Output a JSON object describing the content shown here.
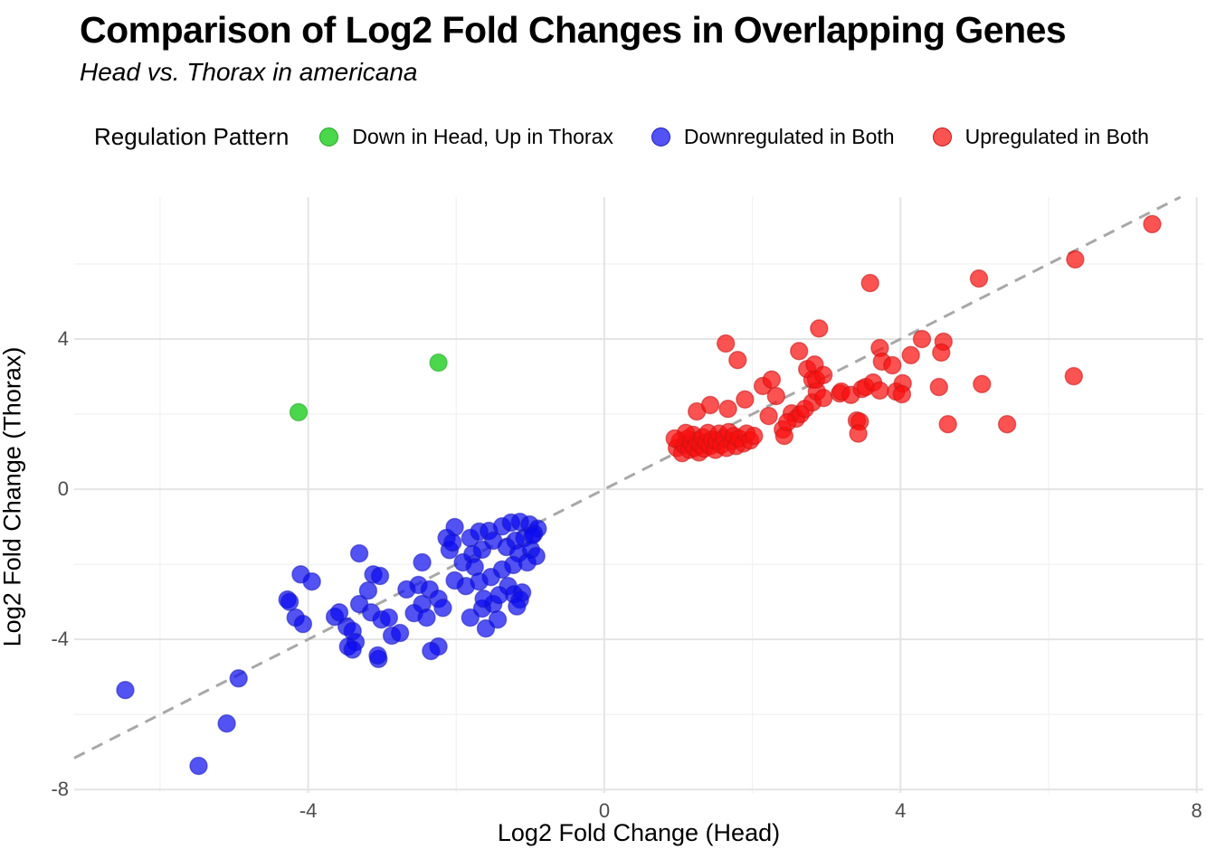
{
  "title": "Comparison of Log2 Fold Changes in Overlapping Genes",
  "subtitle": "Head vs. Thorax in americana",
  "legend": {
    "title": "Regulation Pattern",
    "items": [
      {
        "label": "Down in Head, Up in Thorax",
        "fill": "rgba(30,205,30,0.8)",
        "stroke": "#28a428"
      },
      {
        "label": "Downregulated in Both",
        "fill": "rgba(10,10,240,0.7)",
        "stroke": "#1d1db8"
      },
      {
        "label": "Upregulated in Both",
        "fill": "rgba(250,15,15,0.72)",
        "stroke": "#c21616"
      }
    ]
  },
  "colors": {
    "grid_major": "#e4e4e4",
    "grid_minor": "#f1f1f1",
    "identity_line": "#a8a8a8",
    "tick_text": "#4d4d4d"
  },
  "chart_data": {
    "type": "scatter",
    "title": "Comparison of Log2 Fold Changes in Overlapping Genes",
    "subtitle": "Head vs. Thorax in americana",
    "xlabel": "Log2 Fold Change (Head)",
    "ylabel": "Log2 Fold Change (Thorax)",
    "xlim": [
      -7.16,
      8.09
    ],
    "ylim": [
      -8.09,
      7.78
    ],
    "x_ticks": [
      -4,
      0,
      4,
      8
    ],
    "y_ticks": [
      -8,
      -4,
      0,
      4
    ],
    "x_minor_ticks": [
      -6,
      -2,
      2,
      6
    ],
    "y_minor_ticks": [
      -6,
      -2,
      2,
      6
    ],
    "grid": true,
    "legend_position": "top",
    "marker_radius": 9.5,
    "identity_line": {
      "slope": 1,
      "intercept": 0,
      "style": "dashed"
    },
    "series": [
      {
        "name": "Down in Head, Up in Thorax",
        "fill": "rgba(30,205,30,0.8)",
        "stroke": "#28a428",
        "points": [
          [
            -4.13,
            2.05
          ],
          [
            -2.24,
            3.37
          ]
        ]
      },
      {
        "name": "Downregulated in Both",
        "fill": "rgba(10,10,240,0.7)",
        "stroke": "#1d1db8",
        "points": [
          [
            -6.47,
            -5.35
          ],
          [
            -4.94,
            -5.04
          ],
          [
            -5.1,
            -6.24
          ],
          [
            -5.48,
            -7.37
          ],
          [
            -4.28,
            -2.94
          ],
          [
            -4.25,
            -3.0
          ],
          [
            -4.17,
            -3.42
          ],
          [
            -4.07,
            -3.59
          ],
          [
            -4.1,
            -2.27
          ],
          [
            -3.95,
            -2.46
          ],
          [
            -3.64,
            -3.4
          ],
          [
            -3.58,
            -3.28
          ],
          [
            -3.31,
            -1.71
          ],
          [
            -3.31,
            -3.06
          ],
          [
            -3.48,
            -3.66
          ],
          [
            -3.4,
            -3.78
          ],
          [
            -3.36,
            -4.07
          ],
          [
            -3.46,
            -4.19
          ],
          [
            -3.4,
            -4.27
          ],
          [
            -3.05,
            -4.52
          ],
          [
            -3.12,
            -2.27
          ],
          [
            -3.03,
            -2.31
          ],
          [
            -3.19,
            -2.7
          ],
          [
            -3.15,
            -3.28
          ],
          [
            -3.01,
            -3.47
          ],
          [
            -2.91,
            -3.42
          ],
          [
            -2.87,
            -3.9
          ],
          [
            -2.76,
            -3.83
          ],
          [
            -3.06,
            -4.43
          ],
          [
            -2.46,
            -1.95
          ],
          [
            -2.67,
            -2.67
          ],
          [
            -2.51,
            -2.55
          ],
          [
            -2.36,
            -2.67
          ],
          [
            -2.24,
            -2.92
          ],
          [
            -2.18,
            -3.16
          ],
          [
            -2.46,
            -3.06
          ],
          [
            -2.57,
            -3.3
          ],
          [
            -2.4,
            -3.42
          ],
          [
            -2.24,
            -4.19
          ],
          [
            -2.34,
            -4.31
          ],
          [
            -2.13,
            -1.3
          ],
          [
            -2.09,
            -1.62
          ],
          [
            -1.81,
            -3.42
          ],
          [
            -1.6,
            -3.71
          ],
          [
            -1.65,
            -3.18
          ],
          [
            -1.5,
            -3.06
          ],
          [
            -1.44,
            -3.47
          ],
          [
            -2.02,
            -1.01
          ],
          [
            -2.05,
            -1.42
          ],
          [
            -1.81,
            -1.3
          ],
          [
            -1.69,
            -1.13
          ],
          [
            -1.56,
            -1.11
          ],
          [
            -1.5,
            -1.37
          ],
          [
            -1.65,
            -1.61
          ],
          [
            -1.78,
            -1.73
          ],
          [
            -1.91,
            -1.95
          ],
          [
            -1.75,
            -2.07
          ],
          [
            -1.38,
            -0.99
          ],
          [
            -1.26,
            -0.89
          ],
          [
            -1.14,
            -0.87
          ],
          [
            -1.01,
            -0.94
          ],
          [
            -0.95,
            -1.18
          ],
          [
            -1.08,
            -1.3
          ],
          [
            -1.2,
            -1.37
          ],
          [
            -1.32,
            -1.54
          ],
          [
            -1.16,
            -1.71
          ],
          [
            -0.99,
            -1.61
          ],
          [
            -0.92,
            -1.78
          ],
          [
            -1.04,
            -1.95
          ],
          [
            -1.23,
            -2.02
          ],
          [
            -1.38,
            -2.14
          ],
          [
            -1.53,
            -2.34
          ],
          [
            -1.69,
            -2.46
          ],
          [
            -1.87,
            -2.58
          ],
          [
            -2.02,
            -2.43
          ],
          [
            -1.3,
            -2.58
          ],
          [
            -1.11,
            -2.75
          ],
          [
            -1.42,
            -2.82
          ],
          [
            -1.63,
            -2.92
          ],
          [
            -0.9,
            -1.05
          ],
          [
            -0.97,
            -1.23
          ],
          [
            -1.22,
            -2.8
          ],
          [
            -1.14,
            -2.94
          ],
          [
            -1.18,
            -3.12
          ]
        ]
      },
      {
        "name": "Upregulated in Both",
        "fill": "rgba(250,15,15,0.72)",
        "stroke": "#c21616",
        "points": [
          [
            0.98,
            1.1
          ],
          [
            1.02,
            1.28
          ],
          [
            1.05,
            0.96
          ],
          [
            1.08,
            1.18
          ],
          [
            1.12,
            1.34
          ],
          [
            1.15,
            1.05
          ],
          [
            1.18,
            1.22
          ],
          [
            1.2,
            1.45
          ],
          [
            1.22,
            1.1
          ],
          [
            1.25,
            1.3
          ],
          [
            1.28,
            0.98
          ],
          [
            1.3,
            1.18
          ],
          [
            1.33,
            1.38
          ],
          [
            1.35,
            1.08
          ],
          [
            1.38,
            1.25
          ],
          [
            1.4,
            1.5
          ],
          [
            1.43,
            1.15
          ],
          [
            1.46,
            1.32
          ],
          [
            1.5,
            1.05
          ],
          [
            1.52,
            1.28
          ],
          [
            1.55,
            1.48
          ],
          [
            1.58,
            1.18
          ],
          [
            1.62,
            1.35
          ],
          [
            1.65,
            1.1
          ],
          [
            1.68,
            1.52
          ],
          [
            1.72,
            1.28
          ],
          [
            1.75,
            1.42
          ],
          [
            1.78,
            1.15
          ],
          [
            1.82,
            1.35
          ],
          [
            1.88,
            1.22
          ],
          [
            1.92,
            1.48
          ],
          [
            1.97,
            1.3
          ],
          [
            2.02,
            1.42
          ],
          [
            1.1,
            1.5
          ],
          [
            0.95,
            1.35
          ],
          [
            1.25,
            2.07
          ],
          [
            1.43,
            2.24
          ],
          [
            1.67,
            2.14
          ],
          [
            1.9,
            2.39
          ],
          [
            1.64,
            3.88
          ],
          [
            1.8,
            3.44
          ],
          [
            2.14,
            2.75
          ],
          [
            2.26,
            2.92
          ],
          [
            2.32,
            2.48
          ],
          [
            2.22,
            1.95
          ],
          [
            2.41,
            1.59
          ],
          [
            2.43,
            1.42
          ],
          [
            2.53,
            2.02
          ],
          [
            2.59,
            1.88
          ],
          [
            2.47,
            1.78
          ],
          [
            2.65,
            2.0
          ],
          [
            2.71,
            2.14
          ],
          [
            2.81,
            2.31
          ],
          [
            2.81,
            2.92
          ],
          [
            2.87,
            2.6
          ],
          [
            2.96,
            2.43
          ],
          [
            3.18,
            2.55
          ],
          [
            2.74,
            3.2
          ],
          [
            2.63,
            3.68
          ],
          [
            2.84,
            3.32
          ],
          [
            2.86,
            2.92
          ],
          [
            2.96,
            3.04
          ],
          [
            2.9,
            4.28
          ],
          [
            3.2,
            2.6
          ],
          [
            3.33,
            2.51
          ],
          [
            3.41,
            1.83
          ],
          [
            3.45,
            1.8
          ],
          [
            3.43,
            1.48
          ],
          [
            3.48,
            2.67
          ],
          [
            3.53,
            2.72
          ],
          [
            3.63,
            2.84
          ],
          [
            3.72,
            2.63
          ],
          [
            3.94,
            2.6
          ],
          [
            3.72,
            3.76
          ],
          [
            3.75,
            3.4
          ],
          [
            3.89,
            3.3
          ],
          [
            4.14,
            3.57
          ],
          [
            4.29,
            4.0
          ],
          [
            4.58,
            3.93
          ],
          [
            4.55,
            3.64
          ],
          [
            4.52,
            2.72
          ],
          [
            4.03,
            2.82
          ],
          [
            4.02,
            2.53
          ],
          [
            5.1,
            2.8
          ],
          [
            4.64,
            1.73
          ],
          [
            5.44,
            1.73
          ],
          [
            3.59,
            5.49
          ],
          [
            5.06,
            5.61
          ],
          [
            6.36,
            6.12
          ],
          [
            7.4,
            7.06
          ],
          [
            6.34,
            3.01
          ]
        ]
      }
    ]
  }
}
